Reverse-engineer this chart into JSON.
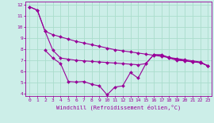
{
  "xlabel": "Windchill (Refroidissement éolien,°C)",
  "xlim": [
    -0.5,
    23.5
  ],
  "ylim": [
    3.8,
    12.3
  ],
  "yticks": [
    4,
    5,
    6,
    7,
    8,
    9,
    10,
    11,
    12
  ],
  "xticks": [
    0,
    1,
    2,
    3,
    4,
    5,
    6,
    7,
    8,
    9,
    10,
    11,
    12,
    13,
    14,
    15,
    16,
    17,
    18,
    19,
    20,
    21,
    22,
    23
  ],
  "background_color": "#cceee8",
  "grid_color": "#aaddcc",
  "line_color": "#990099",
  "curve1_x": [
    0,
    1,
    2,
    3,
    4,
    5,
    6,
    7,
    8,
    9,
    10,
    11,
    12,
    13,
    14,
    15,
    16,
    17,
    18,
    19,
    20,
    21,
    22,
    23
  ],
  "curve1_y": [
    11.8,
    11.5,
    9.6,
    9.3,
    9.1,
    8.9,
    8.7,
    8.55,
    8.4,
    8.25,
    8.1,
    7.95,
    7.85,
    7.75,
    7.65,
    7.55,
    7.45,
    7.35,
    7.25,
    7.15,
    7.05,
    6.95,
    6.85,
    6.5
  ],
  "curve2_x": [
    2,
    3,
    4,
    5,
    6,
    7,
    8,
    9,
    10,
    11,
    12,
    13,
    14,
    15,
    16,
    17,
    18,
    19,
    20,
    21,
    22,
    23
  ],
  "curve2_y": [
    7.9,
    7.2,
    6.7,
    5.1,
    5.05,
    5.1,
    4.85,
    4.7,
    3.9,
    4.6,
    4.7,
    5.9,
    5.4,
    6.7,
    7.5,
    7.5,
    7.25,
    7.05,
    7.0,
    6.85,
    6.8,
    6.5
  ],
  "curve3_x": [
    0,
    1,
    2,
    3,
    4,
    5,
    6,
    7,
    8,
    9,
    10,
    11,
    12,
    13,
    14,
    15,
    16,
    17,
    18,
    19,
    20,
    21,
    22,
    23
  ],
  "curve3_y": [
    11.8,
    11.5,
    9.6,
    7.9,
    7.2,
    7.1,
    7.0,
    6.95,
    6.9,
    6.85,
    6.8,
    6.75,
    6.7,
    6.65,
    6.6,
    6.7,
    7.5,
    7.45,
    7.2,
    7.0,
    6.95,
    6.85,
    6.8,
    6.5
  ]
}
